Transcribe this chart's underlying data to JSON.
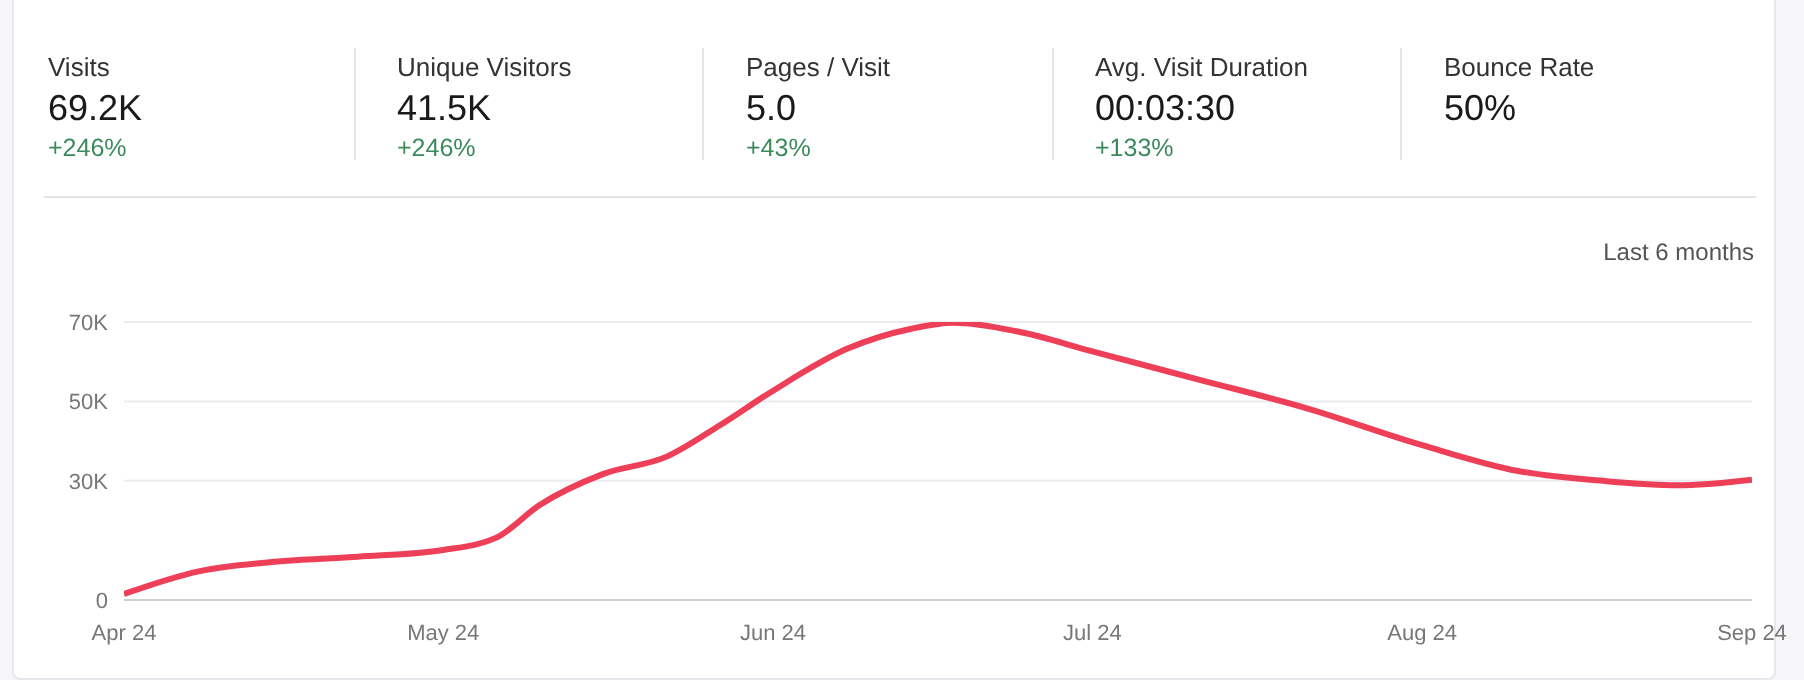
{
  "chart_data": [
    {
      "type": "other",
      "categories": [
        "Visits",
        "Unique Visitors",
        "Pages / Visit",
        "Avg. Visit Duration",
        "Bounce Rate"
      ],
      "value_labels": [
        "69.2K",
        "41.5K",
        "5.0",
        "00:03:30",
        "50%"
      ],
      "annotations": [
        "+246%",
        "+246%",
        "+43%",
        "+133%"
      ]
    },
    {
      "type": "line",
      "subtitle": "Last 6 months",
      "x": [
        "2024-04-01",
        "2024-04-08",
        "2024-04-16",
        "2024-04-23",
        "2024-05-01",
        "2024-05-06",
        "2024-05-10",
        "2024-05-16",
        "2024-05-22",
        "2024-05-27",
        "2024-06-01",
        "2024-06-08",
        "2024-06-14",
        "2024-06-18",
        "2024-06-24",
        "2024-07-01",
        "2024-07-11",
        "2024-07-21",
        "2024-08-01",
        "2024-08-10",
        "2024-08-18",
        "2024-08-25",
        "2024-09-01"
      ],
      "series": [
        {
          "color": "#ee3f58",
          "values": [
            1500,
            7200,
            9800,
            10900,
            12600,
            15700,
            23800,
            31700,
            36100,
            44000,
            52700,
            63300,
            68300,
            69800,
            67600,
            62600,
            55500,
            48400,
            39000,
            32500,
            30000,
            28900,
            30300
          ]
        }
      ],
      "xlim": [
        "2024-04-01",
        "2024-09-01"
      ],
      "xticks": [
        {
          "value": "2024-04-01",
          "label": "Apr 24"
        },
        {
          "value": "2024-05-01",
          "label": "May 24"
        },
        {
          "value": "2024-06-01",
          "label": "Jun 24"
        },
        {
          "value": "2024-07-01",
          "label": "Jul 24"
        },
        {
          "value": "2024-08-01",
          "label": "Aug 24"
        },
        {
          "value": "2024-09-01",
          "label": "Sep 24"
        }
      ],
      "ylim": [
        0,
        70000
      ],
      "yticks": [
        0,
        {
          "value": 30000,
          "label": "30K"
        },
        {
          "value": 50000,
          "label": "50K"
        },
        {
          "value": 70000,
          "label": "70K"
        }
      ],
      "grid": "y",
      "marker": "none",
      "line_style": "solid"
    }
  ]
}
